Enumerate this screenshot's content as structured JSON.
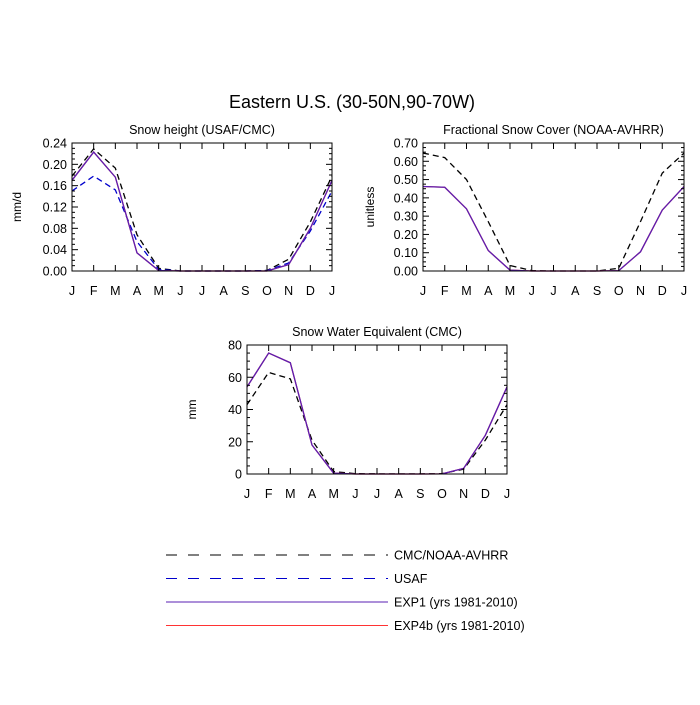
{
  "figure": {
    "title": "Eastern U.S. (30-50N,90-70W)"
  },
  "months": [
    "J",
    "F",
    "M",
    "A",
    "M",
    "J",
    "J",
    "A",
    "S",
    "O",
    "N",
    "D",
    "J"
  ],
  "legend": {
    "placement": "bottom-center",
    "entries": [
      {
        "label": "CMC/NOAA-AVHRR",
        "color": "#000000",
        "dash": true
      },
      {
        "label": "USAF",
        "color": "#0000cc",
        "dash": true
      },
      {
        "label": "EXP1 (yrs 1981-2010)",
        "color": "#5a1fb3",
        "dash": false
      },
      {
        "label": "EXP4b (yrs 1981-2010)",
        "color": "#ff3333",
        "dash": false
      }
    ]
  },
  "chart_data": [
    {
      "type": "line",
      "title": "Snow height (USAF/CMC)",
      "xlabel": "",
      "ylabel": "mm/d",
      "ylim": [
        0,
        0.24
      ],
      "yticks": [
        "0.00",
        "0.04",
        "0.08",
        "0.12",
        "0.16",
        "0.20",
        "0.24"
      ],
      "x": [
        "J",
        "F",
        "M",
        "A",
        "M",
        "J",
        "J",
        "A",
        "S",
        "O",
        "N",
        "D",
        "J"
      ],
      "series": [
        {
          "name": "CMC/NOAA-AVHRR",
          "color": "#000000",
          "dash": true,
          "values": [
            0.178,
            0.229,
            0.193,
            0.068,
            0.005,
            0.0,
            0.0,
            0.0,
            0.0,
            0.001,
            0.022,
            0.092,
            0.178
          ]
        },
        {
          "name": "USAF",
          "color": "#0000cc",
          "dash": true,
          "values": [
            0.15,
            0.178,
            0.152,
            0.055,
            0.003,
            0.0,
            0.0,
            0.0,
            0.0,
            0.001,
            0.015,
            0.075,
            0.15
          ]
        },
        {
          "name": "EXP4b (yrs 1981-2010)",
          "color": "#ff3333",
          "dash": false,
          "values": [
            0.17,
            0.223,
            0.176,
            0.034,
            0.001,
            0.0,
            0.0,
            0.0,
            0.0,
            0.0,
            0.012,
            0.08,
            0.17
          ]
        },
        {
          "name": "EXP1 (yrs 1981-2010)",
          "color": "#5a1fb3",
          "dash": false,
          "values": [
            0.17,
            0.223,
            0.176,
            0.034,
            0.001,
            0.0,
            0.0,
            0.0,
            0.0,
            0.0,
            0.012,
            0.08,
            0.17
          ]
        }
      ]
    },
    {
      "type": "line",
      "title": "Fractional Snow Cover (NOAA-AVHRR)",
      "xlabel": "",
      "ylabel": "unitless",
      "ylim": [
        0,
        0.7
      ],
      "yticks": [
        "0.00",
        "0.10",
        "0.20",
        "0.30",
        "0.40",
        "0.50",
        "0.60",
        "0.70"
      ],
      "x": [
        "J",
        "F",
        "M",
        "A",
        "M",
        "J",
        "J",
        "A",
        "S",
        "O",
        "N",
        "D",
        "J"
      ],
      "series": [
        {
          "name": "CMC/NOAA-AVHRR",
          "color": "#000000",
          "dash": true,
          "values": [
            0.645,
            0.62,
            0.5,
            0.27,
            0.03,
            0.002,
            0.0,
            0.0,
            0.0,
            0.015,
            0.27,
            0.535,
            0.645
          ]
        },
        {
          "name": "EXP4b (yrs 1981-2010)",
          "color": "#ff3333",
          "dash": false,
          "values": [
            0.462,
            0.458,
            0.34,
            0.112,
            0.005,
            0.0,
            0.0,
            0.0,
            0.0,
            0.002,
            0.105,
            0.333,
            0.462
          ]
        },
        {
          "name": "EXP1 (yrs 1981-2010)",
          "color": "#5a1fb3",
          "dash": false,
          "values": [
            0.462,
            0.458,
            0.34,
            0.112,
            0.005,
            0.0,
            0.0,
            0.0,
            0.0,
            0.002,
            0.105,
            0.333,
            0.462
          ]
        }
      ]
    },
    {
      "type": "line",
      "title": "Snow Water Equivalent (CMC)",
      "xlabel": "",
      "ylabel": "mm",
      "ylim": [
        0,
        80
      ],
      "yticks": [
        "0",
        "20",
        "40",
        "60",
        "80"
      ],
      "x": [
        "J",
        "F",
        "M",
        "A",
        "M",
        "J",
        "J",
        "A",
        "S",
        "O",
        "N",
        "D",
        "J"
      ],
      "series": [
        {
          "name": "CMC/NOAA-AVHRR",
          "color": "#000000",
          "dash": true,
          "values": [
            43,
            63,
            59,
            21,
            1.5,
            0.2,
            0.1,
            0.1,
            0.1,
            0.2,
            3,
            21,
            43
          ]
        },
        {
          "name": "EXP4b (yrs 1981-2010)",
          "color": "#ff3333",
          "dash": false,
          "values": [
            54,
            75,
            69,
            18,
            0.5,
            0.0,
            0.0,
            0.0,
            0.0,
            0.1,
            3.5,
            24,
            54
          ]
        },
        {
          "name": "EXP1 (yrs 1981-2010)",
          "color": "#5a1fb3",
          "dash": false,
          "values": [
            54,
            75,
            69,
            18,
            0.5,
            0.0,
            0.0,
            0.0,
            0.0,
            0.1,
            3.5,
            24,
            54
          ]
        }
      ]
    }
  ]
}
